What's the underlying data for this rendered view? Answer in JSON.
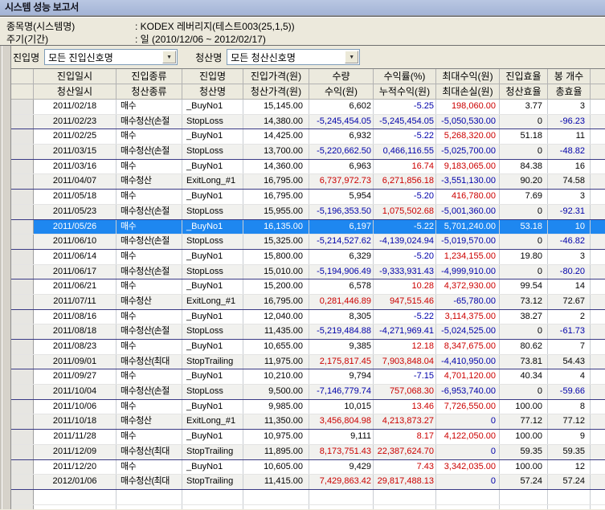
{
  "window": {
    "title": "시스템 성능 보고서"
  },
  "info": {
    "items": [
      {
        "label": "종목명(시스템명)",
        "value": ": KODEX 레버리지(테스트003(25,1,5))"
      },
      {
        "label": "주기(기간)",
        "value": ": 일 (2010/12/06 ~ 2012/02/17)"
      }
    ]
  },
  "filters": {
    "entry_label": "진입명",
    "entry_value": "모든 진입신호명",
    "exit_label": "청산명",
    "exit_value": "모든 청산신호명",
    "dropdown_icon": "▼"
  },
  "colors": {
    "k": "#000000",
    "r": "#cc0000",
    "n": "#0000aa",
    "selected_text": "#ffffff",
    "selection_bg": "#1e87f0"
  },
  "table": {
    "header_row1": [
      "진입일시",
      "진입종류",
      "진입명",
      "진입가격(원)",
      "수량",
      "수익률(%)",
      "최대수익(원)",
      "진입효율",
      "봉 개수"
    ],
    "header_row2": [
      "청산일시",
      "청산종류",
      "청산명",
      "청산가격(원)",
      "수익(원)",
      "누적수익(원)",
      "최대손실(원)",
      "청산효율",
      "총효율"
    ],
    "rows": [
      {
        "exit": false,
        "selected": false,
        "cells": [
          [
            "2011/02/18",
            "k"
          ],
          [
            "매수",
            "k"
          ],
          [
            "_BuyNo1",
            "k"
          ],
          [
            "15,145.00",
            "k"
          ],
          [
            "6,602",
            "k"
          ],
          [
            "-5.25",
            "n"
          ],
          [
            "198,060.00",
            "r"
          ],
          [
            "3.77",
            "k"
          ],
          [
            "3",
            "k"
          ]
        ]
      },
      {
        "exit": true,
        "selected": false,
        "cells": [
          [
            "2011/02/23",
            "k"
          ],
          [
            "매수청산(손절",
            "k"
          ],
          [
            "StopLoss",
            "k"
          ],
          [
            "14,380.00",
            "k"
          ],
          [
            "-5,245,454.05",
            "n"
          ],
          [
            "-5,245,454.05",
            "n"
          ],
          [
            "-5,050,530.00",
            "n"
          ],
          [
            "0",
            "k"
          ],
          [
            "-96.23",
            "n"
          ]
        ]
      },
      {
        "exit": false,
        "selected": false,
        "cells": [
          [
            "2011/02/25",
            "k"
          ],
          [
            "매수",
            "k"
          ],
          [
            "_BuyNo1",
            "k"
          ],
          [
            "14,425.00",
            "k"
          ],
          [
            "6,932",
            "k"
          ],
          [
            "-5.22",
            "n"
          ],
          [
            "5,268,320.00",
            "r"
          ],
          [
            "51.18",
            "k"
          ],
          [
            "11",
            "k"
          ]
        ]
      },
      {
        "exit": true,
        "selected": false,
        "cells": [
          [
            "2011/03/15",
            "k"
          ],
          [
            "매수청산(손절",
            "k"
          ],
          [
            "StopLoss",
            "k"
          ],
          [
            "13,700.00",
            "k"
          ],
          [
            "-5,220,662.50",
            "n"
          ],
          [
            "0,466,116.55",
            "n"
          ],
          [
            "-5,025,700.00",
            "n"
          ],
          [
            "0",
            "k"
          ],
          [
            "-48.82",
            "n"
          ]
        ]
      },
      {
        "exit": false,
        "selected": false,
        "cells": [
          [
            "2011/03/16",
            "k"
          ],
          [
            "매수",
            "k"
          ],
          [
            "_BuyNo1",
            "k"
          ],
          [
            "14,360.00",
            "k"
          ],
          [
            "6,963",
            "k"
          ],
          [
            "16.74",
            "r"
          ],
          [
            "9,183,065.00",
            "r"
          ],
          [
            "84.38",
            "k"
          ],
          [
            "16",
            "k"
          ]
        ]
      },
      {
        "exit": true,
        "selected": false,
        "cells": [
          [
            "2011/04/07",
            "k"
          ],
          [
            "매수청산",
            "k"
          ],
          [
            "ExitLong_#1",
            "k"
          ],
          [
            "16,795.00",
            "k"
          ],
          [
            "6,737,972.73",
            "r"
          ],
          [
            "6,271,856.18",
            "r"
          ],
          [
            "-3,551,130.00",
            "n"
          ],
          [
            "90.20",
            "k"
          ],
          [
            "74.58",
            "k"
          ]
        ]
      },
      {
        "exit": false,
        "selected": false,
        "cells": [
          [
            "2011/05/18",
            "k"
          ],
          [
            "매수",
            "k"
          ],
          [
            "_BuyNo1",
            "k"
          ],
          [
            "16,795.00",
            "k"
          ],
          [
            "5,954",
            "k"
          ],
          [
            "-5.20",
            "n"
          ],
          [
            "416,780.00",
            "r"
          ],
          [
            "7.69",
            "k"
          ],
          [
            "3",
            "k"
          ]
        ]
      },
      {
        "exit": true,
        "selected": false,
        "cells": [
          [
            "2011/05/23",
            "k"
          ],
          [
            "매수청산(손절",
            "k"
          ],
          [
            "StopLoss",
            "k"
          ],
          [
            "15,955.00",
            "k"
          ],
          [
            "-5,196,353.50",
            "n"
          ],
          [
            "1,075,502.68",
            "r"
          ],
          [
            "-5,001,360.00",
            "n"
          ],
          [
            "0",
            "k"
          ],
          [
            "-92.31",
            "n"
          ]
        ]
      },
      {
        "exit": false,
        "selected": true,
        "cells": [
          [
            "2011/05/26",
            "k"
          ],
          [
            "매수",
            "k"
          ],
          [
            "_BuyNo1",
            "k"
          ],
          [
            "16,135.00",
            "k"
          ],
          [
            "6,197",
            "k"
          ],
          [
            "-5.22",
            "k"
          ],
          [
            "5,701,240.00",
            "k"
          ],
          [
            "53.18",
            "k"
          ],
          [
            "10",
            "k"
          ]
        ]
      },
      {
        "exit": true,
        "selected": false,
        "cells": [
          [
            "2011/06/10",
            "k"
          ],
          [
            "매수청산(손절",
            "k"
          ],
          [
            "StopLoss",
            "k"
          ],
          [
            "15,325.00",
            "k"
          ],
          [
            "-5,214,527.62",
            "n"
          ],
          [
            "-4,139,024.94",
            "n"
          ],
          [
            "-5,019,570.00",
            "n"
          ],
          [
            "0",
            "k"
          ],
          [
            "-46.82",
            "n"
          ]
        ]
      },
      {
        "exit": false,
        "selected": false,
        "cells": [
          [
            "2011/06/14",
            "k"
          ],
          [
            "매수",
            "k"
          ],
          [
            "_BuyNo1",
            "k"
          ],
          [
            "15,800.00",
            "k"
          ],
          [
            "6,329",
            "k"
          ],
          [
            "-5.20",
            "n"
          ],
          [
            "1,234,155.00",
            "r"
          ],
          [
            "19.80",
            "k"
          ],
          [
            "3",
            "k"
          ]
        ]
      },
      {
        "exit": true,
        "selected": false,
        "cells": [
          [
            "2011/06/17",
            "k"
          ],
          [
            "매수청산(손절",
            "k"
          ],
          [
            "StopLoss",
            "k"
          ],
          [
            "15,010.00",
            "k"
          ],
          [
            "-5,194,906.49",
            "n"
          ],
          [
            "-9,333,931.43",
            "n"
          ],
          [
            "-4,999,910.00",
            "n"
          ],
          [
            "0",
            "k"
          ],
          [
            "-80.20",
            "n"
          ]
        ]
      },
      {
        "exit": false,
        "selected": false,
        "cells": [
          [
            "2011/06/21",
            "k"
          ],
          [
            "매수",
            "k"
          ],
          [
            "_BuyNo1",
            "k"
          ],
          [
            "15,200.00",
            "k"
          ],
          [
            "6,578",
            "k"
          ],
          [
            "10.28",
            "r"
          ],
          [
            "4,372,930.00",
            "r"
          ],
          [
            "99.54",
            "k"
          ],
          [
            "14",
            "k"
          ]
        ]
      },
      {
        "exit": true,
        "selected": false,
        "cells": [
          [
            "2011/07/11",
            "k"
          ],
          [
            "매수청산",
            "k"
          ],
          [
            "ExitLong_#1",
            "k"
          ],
          [
            "16,795.00",
            "k"
          ],
          [
            "0,281,446.89",
            "r"
          ],
          [
            "947,515.46",
            "r"
          ],
          [
            "-65,780.00",
            "n"
          ],
          [
            "73.12",
            "k"
          ],
          [
            "72.67",
            "k"
          ]
        ]
      },
      {
        "exit": false,
        "selected": false,
        "cells": [
          [
            "2011/08/16",
            "k"
          ],
          [
            "매수",
            "k"
          ],
          [
            "_BuyNo1",
            "k"
          ],
          [
            "12,040.00",
            "k"
          ],
          [
            "8,305",
            "k"
          ],
          [
            "-5.22",
            "n"
          ],
          [
            "3,114,375.00",
            "r"
          ],
          [
            "38.27",
            "k"
          ],
          [
            "2",
            "k"
          ]
        ]
      },
      {
        "exit": true,
        "selected": false,
        "cells": [
          [
            "2011/08/18",
            "k"
          ],
          [
            "매수청산(손절",
            "k"
          ],
          [
            "StopLoss",
            "k"
          ],
          [
            "11,435.00",
            "k"
          ],
          [
            "-5,219,484.88",
            "n"
          ],
          [
            "-4,271,969.41",
            "n"
          ],
          [
            "-5,024,525.00",
            "n"
          ],
          [
            "0",
            "k"
          ],
          [
            "-61.73",
            "n"
          ]
        ]
      },
      {
        "exit": false,
        "selected": false,
        "cells": [
          [
            "2011/08/23",
            "k"
          ],
          [
            "매수",
            "k"
          ],
          [
            "_BuyNo1",
            "k"
          ],
          [
            "10,655.00",
            "k"
          ],
          [
            "9,385",
            "k"
          ],
          [
            "12.18",
            "r"
          ],
          [
            "8,347,675.00",
            "r"
          ],
          [
            "80.62",
            "k"
          ],
          [
            "7",
            "k"
          ]
        ]
      },
      {
        "exit": true,
        "selected": false,
        "cells": [
          [
            "2011/09/01",
            "k"
          ],
          [
            "매수청산(최대",
            "k"
          ],
          [
            "StopTrailing",
            "k"
          ],
          [
            "11,975.00",
            "k"
          ],
          [
            "2,175,817.45",
            "r"
          ],
          [
            "7,903,848.04",
            "r"
          ],
          [
            "-4,410,950.00",
            "n"
          ],
          [
            "73.81",
            "k"
          ],
          [
            "54.43",
            "k"
          ]
        ]
      },
      {
        "exit": false,
        "selected": false,
        "cells": [
          [
            "2011/09/27",
            "k"
          ],
          [
            "매수",
            "k"
          ],
          [
            "_BuyNo1",
            "k"
          ],
          [
            "10,210.00",
            "k"
          ],
          [
            "9,794",
            "k"
          ],
          [
            "-7.15",
            "n"
          ],
          [
            "4,701,120.00",
            "r"
          ],
          [
            "40.34",
            "k"
          ],
          [
            "4",
            "k"
          ]
        ]
      },
      {
        "exit": true,
        "selected": false,
        "cells": [
          [
            "2011/10/04",
            "k"
          ],
          [
            "매수청산(손절",
            "k"
          ],
          [
            "StopLoss",
            "k"
          ],
          [
            "9,500.00",
            "k"
          ],
          [
            "-7,146,779.74",
            "n"
          ],
          [
            "757,068.30",
            "r"
          ],
          [
            "-6,953,740.00",
            "n"
          ],
          [
            "0",
            "k"
          ],
          [
            "-59.66",
            "n"
          ]
        ]
      },
      {
        "exit": false,
        "selected": false,
        "cells": [
          [
            "2011/10/06",
            "k"
          ],
          [
            "매수",
            "k"
          ],
          [
            "_BuyNo1",
            "k"
          ],
          [
            "9,985.00",
            "k"
          ],
          [
            "10,015",
            "k"
          ],
          [
            "13.46",
            "r"
          ],
          [
            "7,726,550.00",
            "r"
          ],
          [
            "100.00",
            "k"
          ],
          [
            "8",
            "k"
          ]
        ]
      },
      {
        "exit": true,
        "selected": false,
        "cells": [
          [
            "2011/10/18",
            "k"
          ],
          [
            "매수청산",
            "k"
          ],
          [
            "ExitLong_#1",
            "k"
          ],
          [
            "11,350.00",
            "k"
          ],
          [
            "3,456,804.98",
            "r"
          ],
          [
            "4,213,873.27",
            "r"
          ],
          [
            "0",
            "n"
          ],
          [
            "77.12",
            "k"
          ],
          [
            "77.12",
            "k"
          ]
        ]
      },
      {
        "exit": false,
        "selected": false,
        "cells": [
          [
            "2011/11/28",
            "k"
          ],
          [
            "매수",
            "k"
          ],
          [
            "_BuyNo1",
            "k"
          ],
          [
            "10,975.00",
            "k"
          ],
          [
            "9,111",
            "k"
          ],
          [
            "8.17",
            "r"
          ],
          [
            "4,122,050.00",
            "r"
          ],
          [
            "100.00",
            "k"
          ],
          [
            "9",
            "k"
          ]
        ]
      },
      {
        "exit": true,
        "selected": false,
        "cells": [
          [
            "2011/12/09",
            "k"
          ],
          [
            "매수청산(최대",
            "k"
          ],
          [
            "StopTrailing",
            "k"
          ],
          [
            "11,895.00",
            "k"
          ],
          [
            "8,173,751.43",
            "r"
          ],
          [
            "22,387,624.70",
            "r"
          ],
          [
            "0",
            "n"
          ],
          [
            "59.35",
            "k"
          ],
          [
            "59.35",
            "k"
          ]
        ]
      },
      {
        "exit": false,
        "selected": false,
        "cells": [
          [
            "2011/12/20",
            "k"
          ],
          [
            "매수",
            "k"
          ],
          [
            "_BuyNo1",
            "k"
          ],
          [
            "10,605.00",
            "k"
          ],
          [
            "9,429",
            "k"
          ],
          [
            "7.43",
            "r"
          ],
          [
            "3,342,035.00",
            "r"
          ],
          [
            "100.00",
            "k"
          ],
          [
            "12",
            "k"
          ]
        ]
      },
      {
        "exit": true,
        "selected": false,
        "cells": [
          [
            "2012/01/06",
            "k"
          ],
          [
            "매수청산(최대",
            "k"
          ],
          [
            "StopTrailing",
            "k"
          ],
          [
            "11,415.00",
            "k"
          ],
          [
            "7,429,863.42",
            "r"
          ],
          [
            "29,817,488.13",
            "r"
          ],
          [
            "0",
            "n"
          ],
          [
            "57.24",
            "k"
          ],
          [
            "57.24",
            "k"
          ]
        ]
      }
    ]
  }
}
